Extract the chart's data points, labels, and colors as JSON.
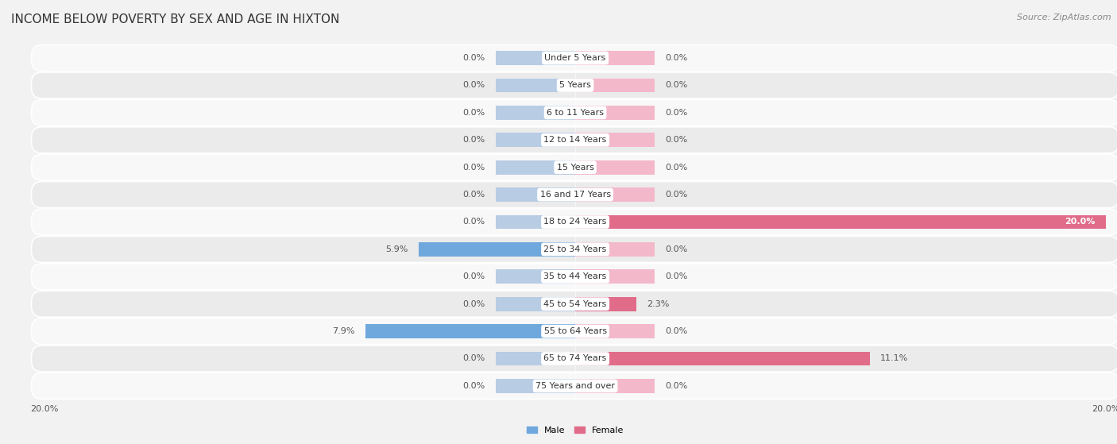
{
  "title": "INCOME BELOW POVERTY BY SEX AND AGE IN HIXTON",
  "source": "Source: ZipAtlas.com",
  "categories": [
    "Under 5 Years",
    "5 Years",
    "6 to 11 Years",
    "12 to 14 Years",
    "15 Years",
    "16 and 17 Years",
    "18 to 24 Years",
    "25 to 34 Years",
    "35 to 44 Years",
    "45 to 54 Years",
    "55 to 64 Years",
    "65 to 74 Years",
    "75 Years and over"
  ],
  "male_values": [
    0.0,
    0.0,
    0.0,
    0.0,
    0.0,
    0.0,
    0.0,
    5.9,
    0.0,
    0.0,
    7.9,
    0.0,
    0.0
  ],
  "female_values": [
    0.0,
    0.0,
    0.0,
    0.0,
    0.0,
    0.0,
    20.0,
    0.0,
    0.0,
    2.3,
    0.0,
    11.1,
    0.0
  ],
  "male_color_light": "#b8cce4",
  "male_color_dark": "#6fa8dc",
  "female_color_light": "#f4b8cb",
  "female_color_dark": "#e06c8a",
  "axis_limit": 20.0,
  "bar_height": 0.52,
  "min_bar_width": 3.0,
  "background_color": "#f2f2f2",
  "row_bg_even": "#f8f8f8",
  "row_bg_odd": "#ebebeb",
  "title_fontsize": 11,
  "label_fontsize": 8,
  "value_fontsize": 8,
  "tick_fontsize": 8,
  "source_fontsize": 8
}
